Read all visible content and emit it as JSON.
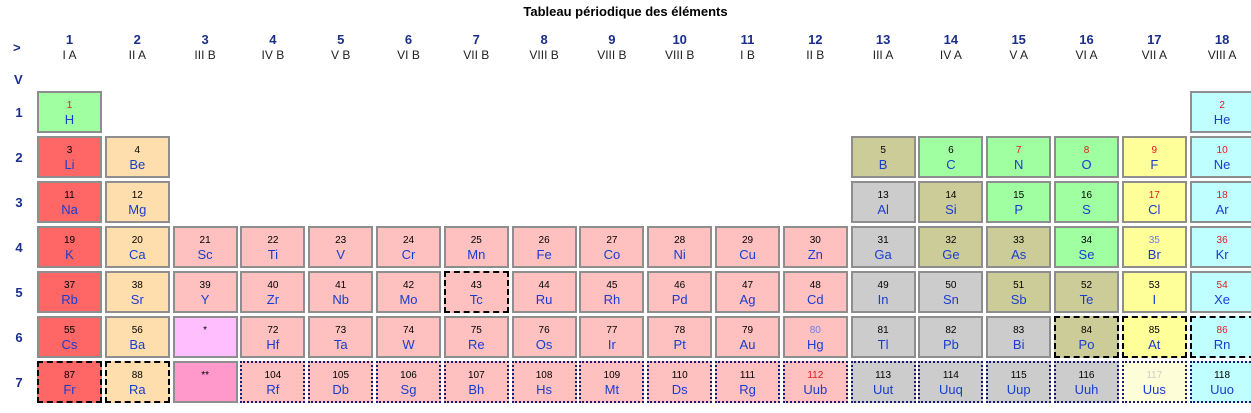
{
  "title": "Tableau périodique des éléments",
  "corner": {
    "right_arrow": ">",
    "down_arrow": "V"
  },
  "groups": [
    {
      "number": "1",
      "roman": "I A"
    },
    {
      "number": "2",
      "roman": "II A"
    },
    {
      "number": "3",
      "roman": "III B"
    },
    {
      "number": "4",
      "roman": "IV B"
    },
    {
      "number": "5",
      "roman": "V B"
    },
    {
      "number": "6",
      "roman": "VI B"
    },
    {
      "number": "7",
      "roman": "VII B"
    },
    {
      "number": "8",
      "roman": "VIII B"
    },
    {
      "number": "9",
      "roman": "VIII B"
    },
    {
      "number": "10",
      "roman": "VIII B"
    },
    {
      "number": "11",
      "roman": "I B"
    },
    {
      "number": "12",
      "roman": "II B"
    },
    {
      "number": "13",
      "roman": "III A"
    },
    {
      "number": "14",
      "roman": "IV A"
    },
    {
      "number": "15",
      "roman": "V A"
    },
    {
      "number": "16",
      "roman": "VI A"
    },
    {
      "number": "17",
      "roman": "VII A"
    },
    {
      "number": "18",
      "roman": "VIII A"
    }
  ],
  "periods": [
    "1",
    "2",
    "3",
    "4",
    "5",
    "6",
    "7"
  ],
  "elements": [
    {
      "n": "1",
      "s": "H",
      "g": 1,
      "p": 1,
      "c": "nm",
      "nc": "red"
    },
    {
      "n": "2",
      "s": "He",
      "g": 18,
      "p": 1,
      "c": "ng",
      "nc": "red"
    },
    {
      "n": "3",
      "s": "Li",
      "g": 1,
      "p": 2,
      "c": "alk",
      "nc": "black"
    },
    {
      "n": "4",
      "s": "Be",
      "g": 2,
      "p": 2,
      "c": "ae",
      "nc": "black"
    },
    {
      "n": "5",
      "s": "B",
      "g": 13,
      "p": 2,
      "c": "ml",
      "nc": "black"
    },
    {
      "n": "6",
      "s": "C",
      "g": 14,
      "p": 2,
      "c": "nm",
      "nc": "black"
    },
    {
      "n": "7",
      "s": "N",
      "g": 15,
      "p": 2,
      "c": "nm",
      "nc": "red"
    },
    {
      "n": "8",
      "s": "O",
      "g": 16,
      "p": 2,
      "c": "nm",
      "nc": "red"
    },
    {
      "n": "9",
      "s": "F",
      "g": 17,
      "p": 2,
      "c": "hal",
      "nc": "red"
    },
    {
      "n": "10",
      "s": "Ne",
      "g": 18,
      "p": 2,
      "c": "ng",
      "nc": "red"
    },
    {
      "n": "11",
      "s": "Na",
      "g": 1,
      "p": 3,
      "c": "alk",
      "nc": "black"
    },
    {
      "n": "12",
      "s": "Mg",
      "g": 2,
      "p": 3,
      "c": "ae",
      "nc": "black"
    },
    {
      "n": "13",
      "s": "Al",
      "g": 13,
      "p": 3,
      "c": "pm",
      "nc": "black"
    },
    {
      "n": "14",
      "s": "Si",
      "g": 14,
      "p": 3,
      "c": "ml",
      "nc": "black"
    },
    {
      "n": "15",
      "s": "P",
      "g": 15,
      "p": 3,
      "c": "nm",
      "nc": "black"
    },
    {
      "n": "16",
      "s": "S",
      "g": 16,
      "p": 3,
      "c": "nm",
      "nc": "black"
    },
    {
      "n": "17",
      "s": "Cl",
      "g": 17,
      "p": 3,
      "c": "hal",
      "nc": "red"
    },
    {
      "n": "18",
      "s": "Ar",
      "g": 18,
      "p": 3,
      "c": "ng",
      "nc": "red"
    },
    {
      "n": "19",
      "s": "K",
      "g": 1,
      "p": 4,
      "c": "alk",
      "nc": "black"
    },
    {
      "n": "20",
      "s": "Ca",
      "g": 2,
      "p": 4,
      "c": "ae",
      "nc": "black"
    },
    {
      "n": "21",
      "s": "Sc",
      "g": 3,
      "p": 4,
      "c": "tm",
      "nc": "black"
    },
    {
      "n": "22",
      "s": "Ti",
      "g": 4,
      "p": 4,
      "c": "tm",
      "nc": "black"
    },
    {
      "n": "23",
      "s": "V",
      "g": 5,
      "p": 4,
      "c": "tm",
      "nc": "black"
    },
    {
      "n": "24",
      "s": "Cr",
      "g": 6,
      "p": 4,
      "c": "tm",
      "nc": "black"
    },
    {
      "n": "25",
      "s": "Mn",
      "g": 7,
      "p": 4,
      "c": "tm",
      "nc": "black"
    },
    {
      "n": "26",
      "s": "Fe",
      "g": 8,
      "p": 4,
      "c": "tm",
      "nc": "black"
    },
    {
      "n": "27",
      "s": "Co",
      "g": 9,
      "p": 4,
      "c": "tm",
      "nc": "black"
    },
    {
      "n": "28",
      "s": "Ni",
      "g": 10,
      "p": 4,
      "c": "tm",
      "nc": "black"
    },
    {
      "n": "29",
      "s": "Cu",
      "g": 11,
      "p": 4,
      "c": "tm",
      "nc": "black"
    },
    {
      "n": "30",
      "s": "Zn",
      "g": 12,
      "p": 4,
      "c": "tm",
      "nc": "black"
    },
    {
      "n": "31",
      "s": "Ga",
      "g": 13,
      "p": 4,
      "c": "pm",
      "nc": "black"
    },
    {
      "n": "32",
      "s": "Ge",
      "g": 14,
      "p": 4,
      "c": "ml",
      "nc": "black"
    },
    {
      "n": "33",
      "s": "As",
      "g": 15,
      "p": 4,
      "c": "ml",
      "nc": "black"
    },
    {
      "n": "34",
      "s": "Se",
      "g": 16,
      "p": 4,
      "c": "nm",
      "nc": "black"
    },
    {
      "n": "35",
      "s": "Br",
      "g": 17,
      "p": 4,
      "c": "hal",
      "nc": "blue"
    },
    {
      "n": "36",
      "s": "Kr",
      "g": 18,
      "p": 4,
      "c": "ng",
      "nc": "red"
    },
    {
      "n": "37",
      "s": "Rb",
      "g": 1,
      "p": 5,
      "c": "alk",
      "nc": "black"
    },
    {
      "n": "38",
      "s": "Sr",
      "g": 2,
      "p": 5,
      "c": "ae",
      "nc": "black"
    },
    {
      "n": "39",
      "s": "Y",
      "g": 3,
      "p": 5,
      "c": "tm",
      "nc": "black"
    },
    {
      "n": "40",
      "s": "Zr",
      "g": 4,
      "p": 5,
      "c": "tm",
      "nc": "black"
    },
    {
      "n": "41",
      "s": "Nb",
      "g": 5,
      "p": 5,
      "c": "tm",
      "nc": "black"
    },
    {
      "n": "42",
      "s": "Mo",
      "g": 6,
      "p": 5,
      "c": "tm",
      "nc": "black"
    },
    {
      "n": "43",
      "s": "Tc",
      "g": 7,
      "p": 5,
      "c": "tm",
      "nc": "black",
      "b": "dash"
    },
    {
      "n": "44",
      "s": "Ru",
      "g": 8,
      "p": 5,
      "c": "tm",
      "nc": "black"
    },
    {
      "n": "45",
      "s": "Rh",
      "g": 9,
      "p": 5,
      "c": "tm",
      "nc": "black"
    },
    {
      "n": "46",
      "s": "Pd",
      "g": 10,
      "p": 5,
      "c": "tm",
      "nc": "black"
    },
    {
      "n": "47",
      "s": "Ag",
      "g": 11,
      "p": 5,
      "c": "tm",
      "nc": "black"
    },
    {
      "n": "48",
      "s": "Cd",
      "g": 12,
      "p": 5,
      "c": "tm",
      "nc": "black"
    },
    {
      "n": "49",
      "s": "In",
      "g": 13,
      "p": 5,
      "c": "pm",
      "nc": "black"
    },
    {
      "n": "50",
      "s": "Sn",
      "g": 14,
      "p": 5,
      "c": "pm",
      "nc": "black"
    },
    {
      "n": "51",
      "s": "Sb",
      "g": 15,
      "p": 5,
      "c": "ml",
      "nc": "black"
    },
    {
      "n": "52",
      "s": "Te",
      "g": 16,
      "p": 5,
      "c": "ml",
      "nc": "black"
    },
    {
      "n": "53",
      "s": "I",
      "g": 17,
      "p": 5,
      "c": "hal",
      "nc": "black"
    },
    {
      "n": "54",
      "s": "Xe",
      "g": 18,
      "p": 5,
      "c": "ng",
      "nc": "red"
    },
    {
      "n": "55",
      "s": "Cs",
      "g": 1,
      "p": 6,
      "c": "alk",
      "nc": "black"
    },
    {
      "n": "56",
      "s": "Ba",
      "g": 2,
      "p": 6,
      "c": "ae",
      "nc": "black"
    },
    {
      "n": "*",
      "s": "",
      "g": 3,
      "p": 6,
      "c": "ln",
      "nc": "black"
    },
    {
      "n": "72",
      "s": "Hf",
      "g": 4,
      "p": 6,
      "c": "tm",
      "nc": "black"
    },
    {
      "n": "73",
      "s": "Ta",
      "g": 5,
      "p": 6,
      "c": "tm",
      "nc": "black"
    },
    {
      "n": "74",
      "s": "W",
      "g": 6,
      "p": 6,
      "c": "tm",
      "nc": "black"
    },
    {
      "n": "75",
      "s": "Re",
      "g": 7,
      "p": 6,
      "c": "tm",
      "nc": "black"
    },
    {
      "n": "76",
      "s": "Os",
      "g": 8,
      "p": 6,
      "c": "tm",
      "nc": "black"
    },
    {
      "n": "77",
      "s": "Ir",
      "g": 9,
      "p": 6,
      "c": "tm",
      "nc": "black"
    },
    {
      "n": "78",
      "s": "Pt",
      "g": 10,
      "p": 6,
      "c": "tm",
      "nc": "black"
    },
    {
      "n": "79",
      "s": "Au",
      "g": 11,
      "p": 6,
      "c": "tm",
      "nc": "black"
    },
    {
      "n": "80",
      "s": "Hg",
      "g": 12,
      "p": 6,
      "c": "tm",
      "nc": "blue"
    },
    {
      "n": "81",
      "s": "Tl",
      "g": 13,
      "p": 6,
      "c": "pm",
      "nc": "black"
    },
    {
      "n": "82",
      "s": "Pb",
      "g": 14,
      "p": 6,
      "c": "pm",
      "nc": "black"
    },
    {
      "n": "83",
      "s": "Bi",
      "g": 15,
      "p": 6,
      "c": "pm",
      "nc": "black"
    },
    {
      "n": "84",
      "s": "Po",
      "g": 16,
      "p": 6,
      "c": "ml",
      "nc": "black",
      "b": "dash"
    },
    {
      "n": "85",
      "s": "At",
      "g": 17,
      "p": 6,
      "c": "hal",
      "nc": "black",
      "b": "dash"
    },
    {
      "n": "86",
      "s": "Rn",
      "g": 18,
      "p": 6,
      "c": "ng",
      "nc": "red",
      "b": "dash"
    },
    {
      "n": "87",
      "s": "Fr",
      "g": 1,
      "p": 7,
      "c": "alk",
      "nc": "black",
      "b": "dash"
    },
    {
      "n": "88",
      "s": "Ra",
      "g": 2,
      "p": 7,
      "c": "ae",
      "nc": "black",
      "b": "dash"
    },
    {
      "n": "**",
      "s": "",
      "g": 3,
      "p": 7,
      "c": "ac",
      "nc": "black"
    },
    {
      "n": "104",
      "s": "Rf",
      "g": 4,
      "p": 7,
      "c": "tm",
      "nc": "black",
      "b": "dot"
    },
    {
      "n": "105",
      "s": "Db",
      "g": 5,
      "p": 7,
      "c": "tm",
      "nc": "black",
      "b": "dot"
    },
    {
      "n": "106",
      "s": "Sg",
      "g": 6,
      "p": 7,
      "c": "tm",
      "nc": "black",
      "b": "dot"
    },
    {
      "n": "107",
      "s": "Bh",
      "g": 7,
      "p": 7,
      "c": "tm",
      "nc": "black",
      "b": "dot"
    },
    {
      "n": "108",
      "s": "Hs",
      "g": 8,
      "p": 7,
      "c": "tm",
      "nc": "black",
      "b": "dot"
    },
    {
      "n": "109",
      "s": "Mt",
      "g": 9,
      "p": 7,
      "c": "tm",
      "nc": "black",
      "b": "dot"
    },
    {
      "n": "110",
      "s": "Ds",
      "g": 10,
      "p": 7,
      "c": "tm",
      "nc": "black",
      "b": "dot"
    },
    {
      "n": "111",
      "s": "Rg",
      "g": 11,
      "p": 7,
      "c": "tm",
      "nc": "black",
      "b": "dot"
    },
    {
      "n": "112",
      "s": "Uub",
      "g": 12,
      "p": 7,
      "c": "tm",
      "nc": "red",
      "b": "dot"
    },
    {
      "n": "113",
      "s": "Uut",
      "g": 13,
      "p": 7,
      "c": "pm",
      "nc": "black",
      "b": "dot"
    },
    {
      "n": "114",
      "s": "Uuq",
      "g": 14,
      "p": 7,
      "c": "pm",
      "nc": "black",
      "b": "dot"
    },
    {
      "n": "115",
      "s": "Uup",
      "g": 15,
      "p": 7,
      "c": "pm",
      "nc": "black",
      "b": "dot"
    },
    {
      "n": "116",
      "s": "Uuh",
      "g": 16,
      "p": 7,
      "c": "pm",
      "nc": "black",
      "b": "dot"
    },
    {
      "n": "117",
      "s": "Uus",
      "g": 17,
      "p": 7,
      "c": "unk",
      "nc": "faint",
      "b": "dot"
    },
    {
      "n": "118",
      "s": "Uuo",
      "g": 18,
      "p": 7,
      "c": "ng",
      "nc": "black",
      "b": "dot"
    }
  ]
}
